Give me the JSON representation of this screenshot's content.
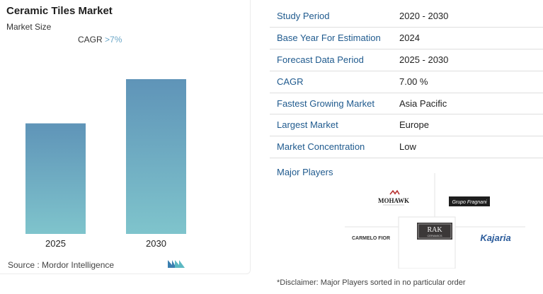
{
  "chart_data": {
    "type": "bar",
    "title": "Ceramic Tiles Market",
    "subtitle": "Market Size",
    "categories": [
      "2025",
      "2030"
    ],
    "values": [
      1.0,
      1.4
    ],
    "annotation": {
      "label": "CAGR",
      "value": ">7%"
    },
    "grid": false,
    "legend": "none",
    "colors": {
      "bar_top": "#5f94b8",
      "bar_bottom": "#7fc4cc",
      "accent": "#6aa6c7"
    }
  },
  "source": "Source :  Mordor Intelligence",
  "info": [
    {
      "key": "Study Period",
      "value": "2020 - 2030"
    },
    {
      "key": "Base Year For Estimation",
      "value": "2024"
    },
    {
      "key": "Forecast Data Period",
      "value": "2025 - 2030"
    },
    {
      "key": "CAGR",
      "value": "7.00 %"
    },
    {
      "key": "Fastest Growing Market",
      "value": "Asia Pacific"
    },
    {
      "key": "Largest Market",
      "value": "Europe"
    },
    {
      "key": "Market Concentration",
      "value": "Low"
    }
  ],
  "players": {
    "title": "Major Players",
    "logos": {
      "mohawk": "MOHAWK",
      "fragnani": "Grupo Fragnani",
      "rak": "RAK",
      "rak_sub": "CERAMICS",
      "carmelo": "CARMELO FIOR",
      "kajaria": "Kajaria"
    }
  },
  "disclaimer": "*Disclaimer: Major Players sorted in no particular order"
}
